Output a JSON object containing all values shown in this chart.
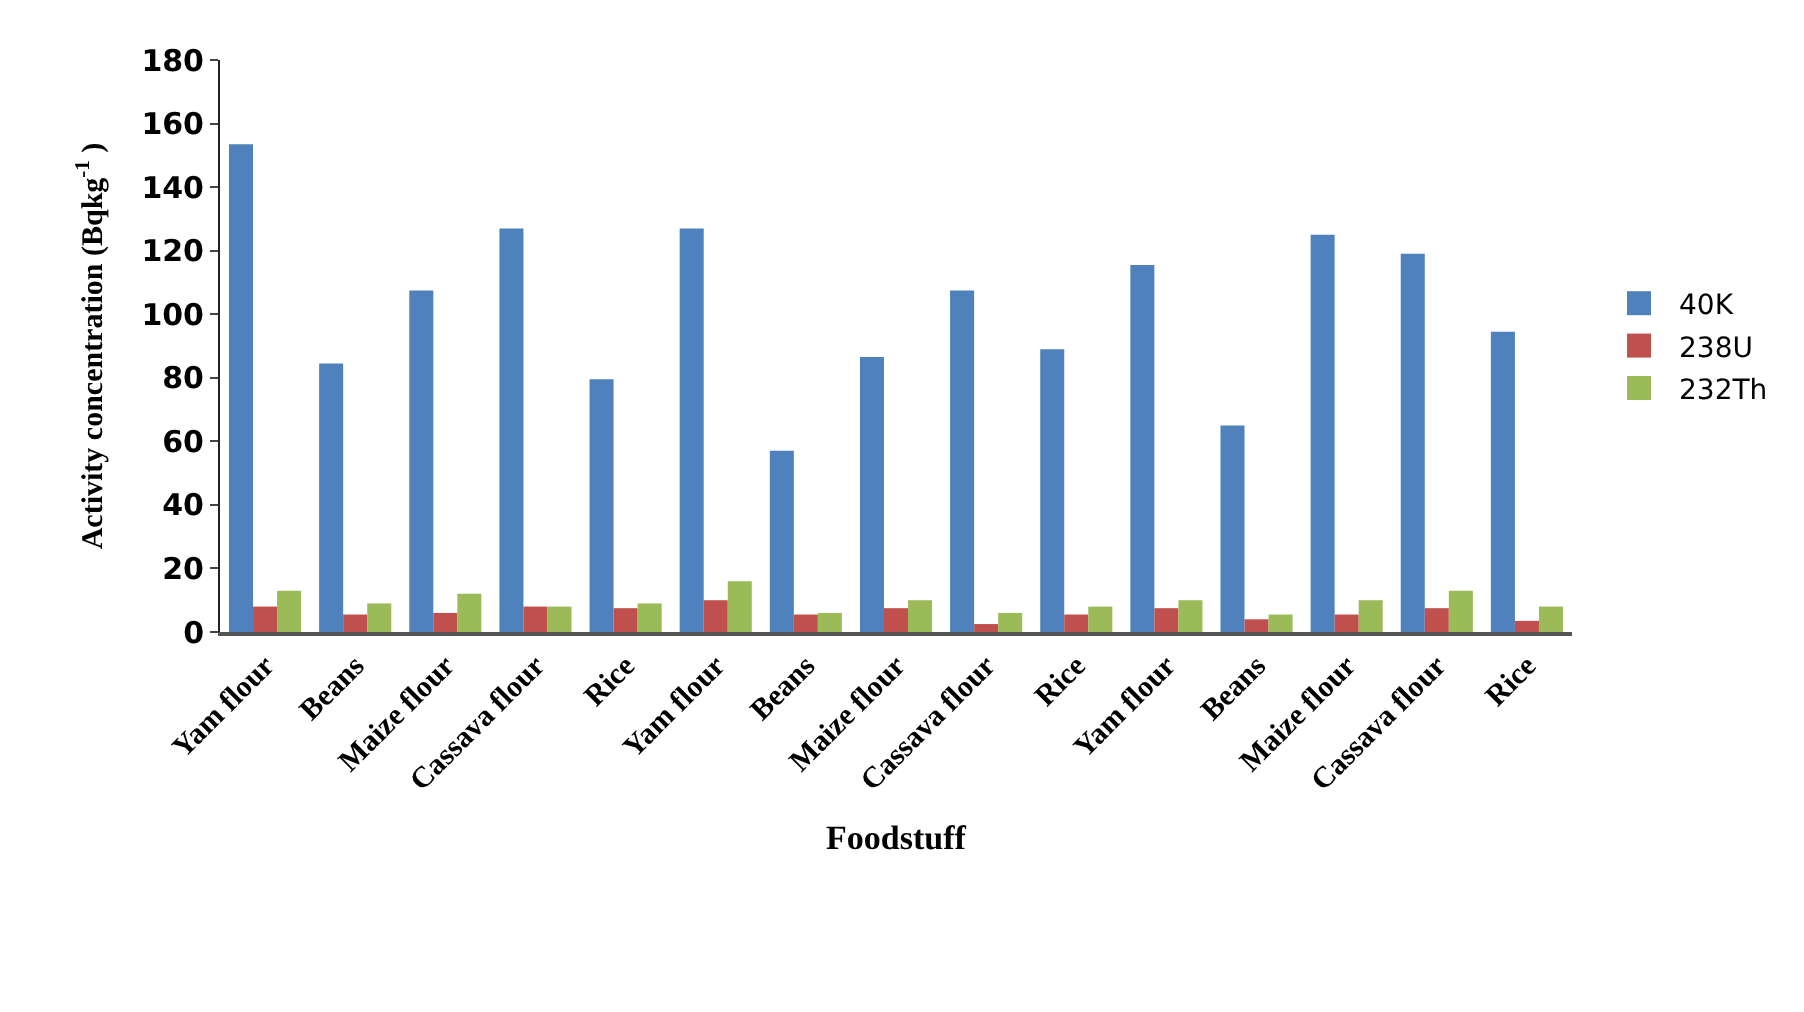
{
  "chart_data": {
    "type": "bar",
    "xlabel": "Foodstuff",
    "ylabel": "Activity concentration (Bqkg$^{-1}$ )",
    "categories": [
      "Yam flour",
      "Beans",
      "Maize flour",
      "Cassava flour",
      "Rice",
      "Yam flour",
      "Beans",
      "Maize flour",
      "Cassava flour",
      "Rice",
      "Yam flour",
      "Beans",
      "Maize flour",
      "Cassava flour",
      "Rice"
    ],
    "series": [
      {
        "name": "40K",
        "color": "#4f81bd",
        "values": [
          153.5,
          84.5,
          107.5,
          127,
          79.5,
          127,
          57,
          86.5,
          107.5,
          89,
          115.5,
          65,
          125,
          119,
          94.5
        ]
      },
      {
        "name": "238U",
        "color": "#c0504d",
        "values": [
          8,
          5.5,
          6,
          8,
          7.5,
          10,
          5.5,
          7.5,
          2.5,
          5.5,
          7.5,
          4,
          5.5,
          7.5,
          3.5
        ]
      },
      {
        "name": "232Th",
        "color": "#9bbb59",
        "values": [
          13,
          9,
          12,
          8,
          9,
          16,
          6,
          10,
          6,
          8,
          10,
          5.5,
          10,
          13,
          8
        ]
      }
    ],
    "ylim": [
      0,
      180
    ],
    "yticks": [
      0,
      20,
      40,
      60,
      80,
      100,
      120,
      140,
      160,
      180
    ],
    "legend": "right"
  }
}
